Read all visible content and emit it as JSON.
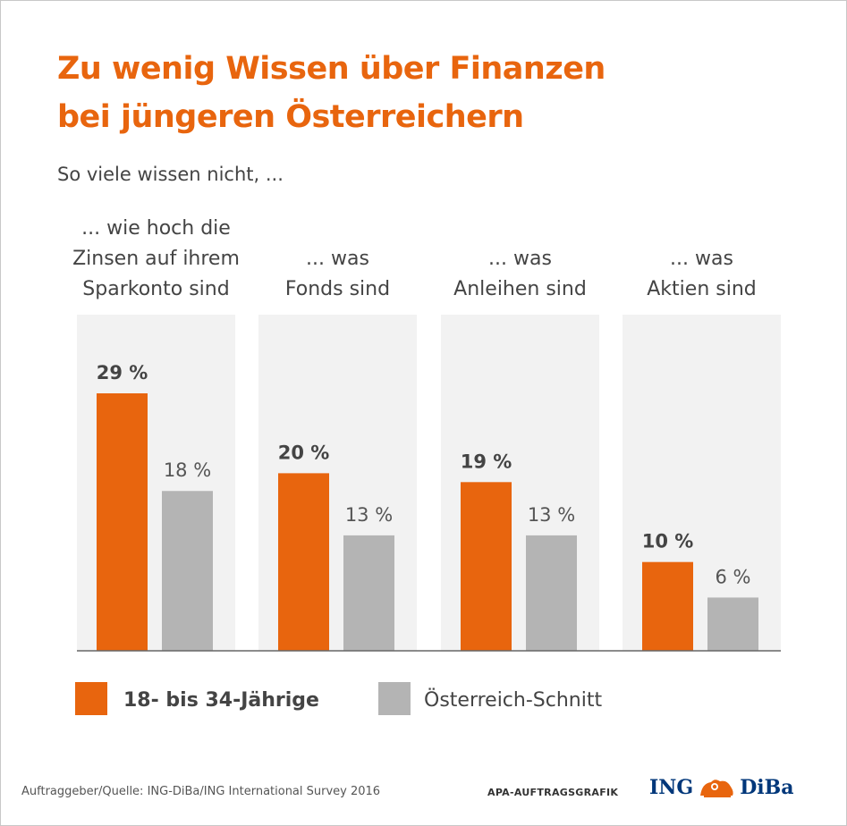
{
  "title_line1": "Zu wenig Wissen über Finanzen",
  "title_line2": "bei jüngeren Österreichern",
  "subtitle": "So viele wissen nicht, ...",
  "source": "Auftraggeber/Quelle: ING-DiBa/ING International Survey 2016",
  "credit": "APA-AUFTRAGSGRAFIK",
  "logo_left": "ING",
  "logo_right": "DiBa",
  "colors": {
    "young": "#e8650e",
    "avg": "#b4b4b4",
    "panel": "#f2f2f2",
    "title": "#e8650e"
  },
  "chart_data": {
    "type": "bar",
    "categories": [
      [
        "... wie hoch die",
        "Zinsen auf ihrem",
        "Sparkonto sind"
      ],
      [
        "... was",
        "Fonds sind"
      ],
      [
        "... was",
        "Anleihen sind"
      ],
      [
        "... was",
        "Aktien sind"
      ]
    ],
    "series": [
      {
        "name": "18- bis 34-Jährige",
        "values": [
          29,
          20,
          19,
          10
        ]
      },
      {
        "name": "Österreich-Schnitt",
        "values": [
          18,
          13,
          13,
          6
        ]
      }
    ],
    "value_labels": [
      [
        "29 %",
        "20 %",
        "19 %",
        "10 %"
      ],
      [
        "18 %",
        "13 %",
        "13 %",
        "6 %"
      ]
    ],
    "unit": "%",
    "ylim": [
      0,
      29
    ],
    "grid": false,
    "legend": "bottom"
  }
}
